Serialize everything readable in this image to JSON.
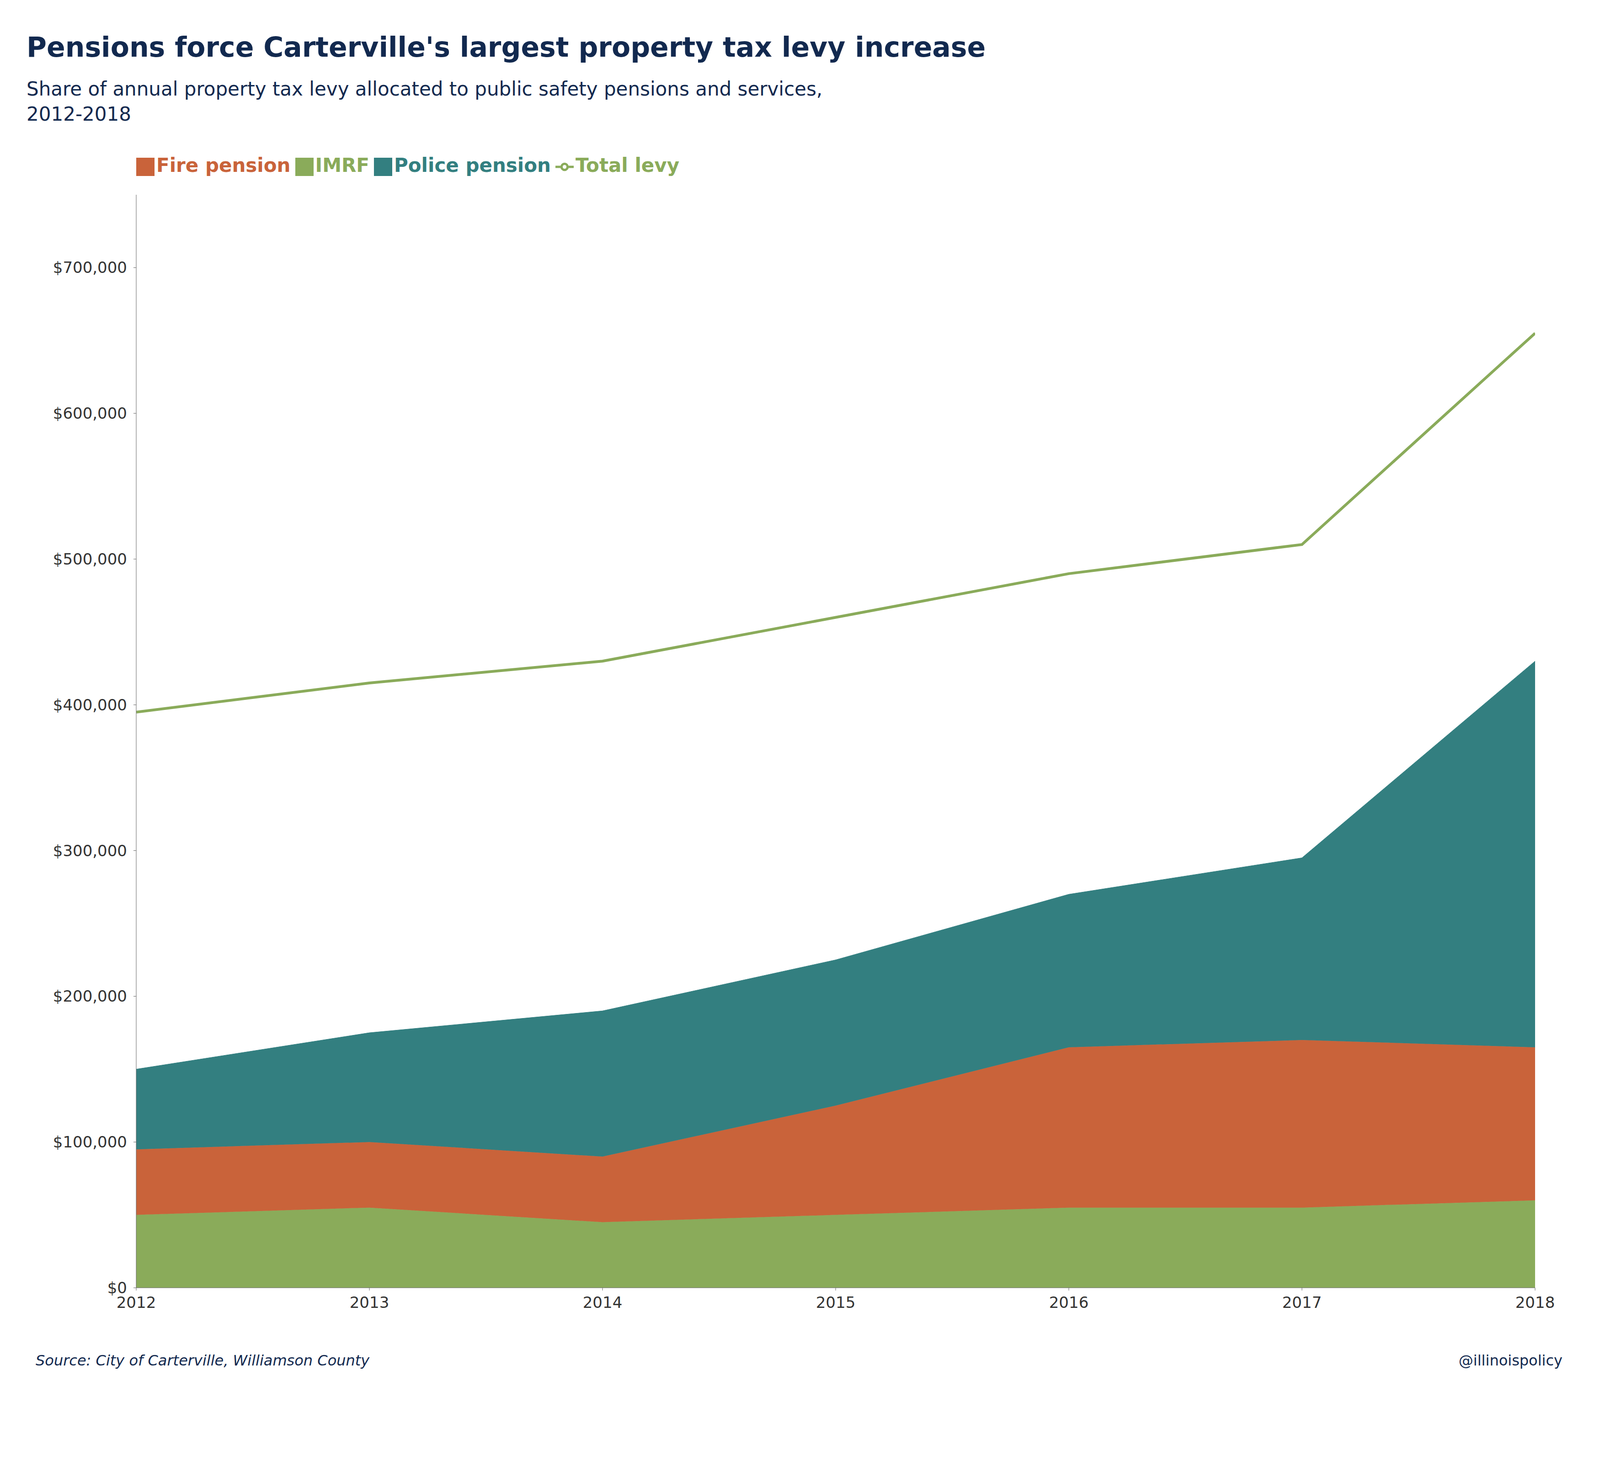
{
  "chart_data": {
    "type": "area",
    "title": "Pensions force Carterville's largest property tax levy increase",
    "subtitle": "Share of annual property tax levy allocated to public safety pensions and services,\n2012-2018",
    "annotations": [
      "Source: City of Carterville, Williamson County",
      "@illinoispolicy"
    ],
    "x": [
      2012,
      2013,
      2014,
      2015,
      2016,
      2017,
      2018
    ],
    "series": [
      {
        "name": "IMRF",
        "color": "#8aab5a",
        "type": "area",
        "values": [
          50000,
          55000,
          45000,
          50000,
          55000,
          55000,
          60000
        ]
      },
      {
        "name": "Fire pension",
        "color": "#c9633a",
        "type": "area",
        "values": [
          45000,
          45000,
          45000,
          75000,
          110000,
          115000,
          105000
        ]
      },
      {
        "name": "Police pension",
        "color": "#337f80",
        "type": "area",
        "values": [
          55000,
          75000,
          100000,
          100000,
          105000,
          125000,
          265000
        ]
      },
      {
        "name": "Total levy",
        "color": "#8aab5a",
        "type": "line",
        "values": [
          395000,
          415000,
          430000,
          460000,
          490000,
          510000,
          655000
        ]
      }
    ],
    "stacked": true,
    "xlim": [
      2012,
      2018
    ],
    "xticks": [
      2012,
      2013,
      2014,
      2015,
      2016,
      2017,
      2018
    ],
    "ylim": [
      0,
      750000
    ],
    "yticks": [
      {
        "value": 0,
        "label": "$0"
      },
      {
        "value": 100000,
        "label": "$100,000"
      },
      {
        "value": 200000,
        "label": "$200,000"
      },
      {
        "value": 300000,
        "label": "$300,000"
      },
      {
        "value": 400000,
        "label": "$400,000"
      },
      {
        "value": 500000,
        "label": "$500,000"
      },
      {
        "value": 600000,
        "label": "$600,000"
      },
      {
        "value": 700000,
        "label": "$700,000"
      }
    ],
    "grid": false,
    "legend": "top"
  }
}
